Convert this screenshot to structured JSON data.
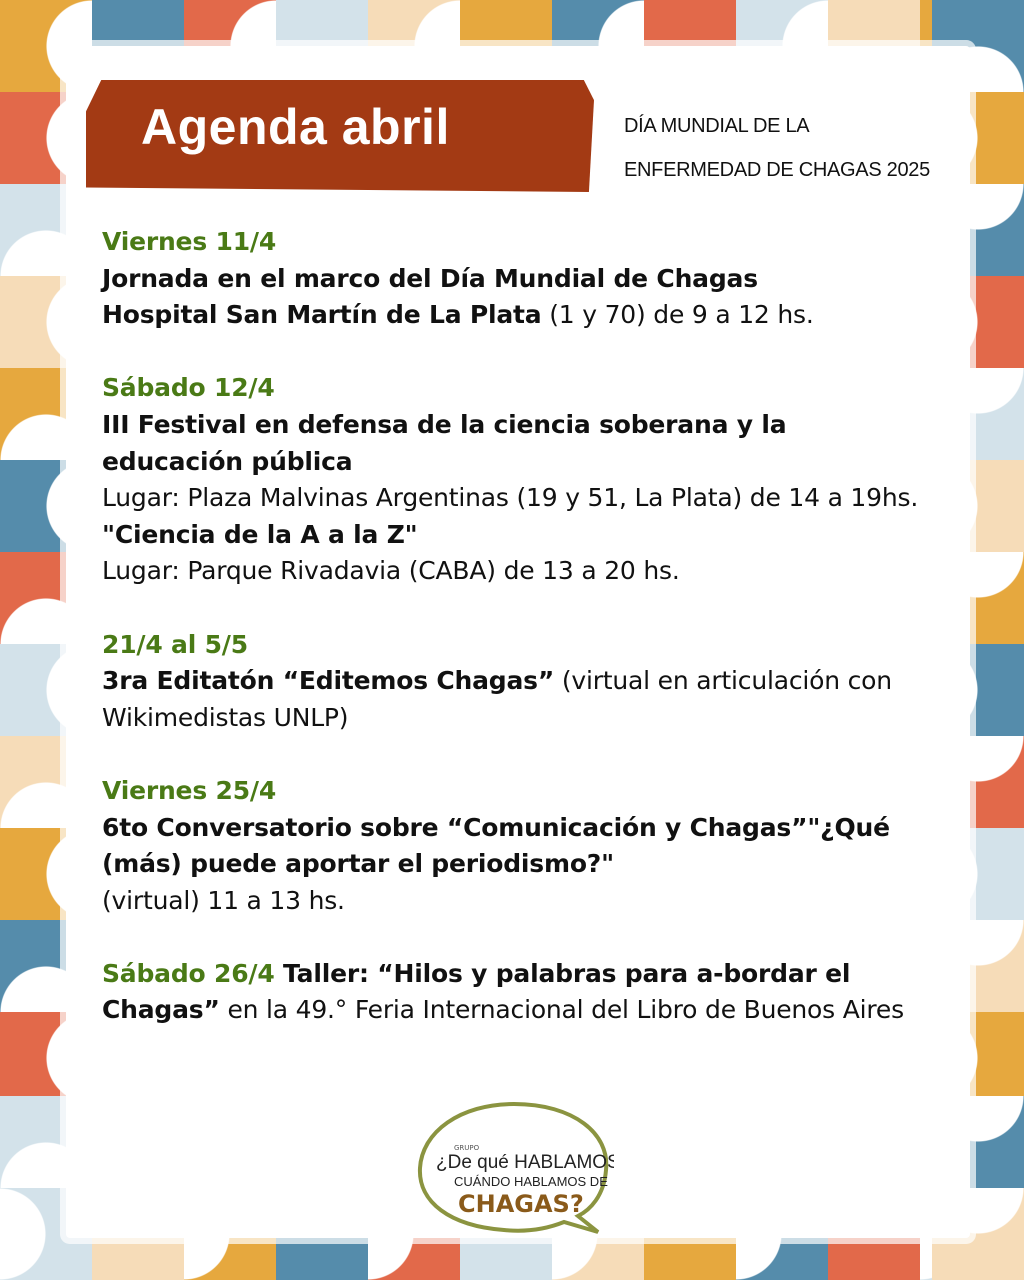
{
  "header": {
    "title": "Agenda abril",
    "subtitle_line1": "DÍA MUNDIAL DE LA",
    "subtitle_line2": "ENFERMEDAD DE CHAGAS 2025"
  },
  "colors": {
    "header_bg": "#a33a14",
    "date_green": "#4a7a16",
    "pattern": [
      "#e6a83e",
      "#558cab",
      "#e2694a",
      "#d3e2ea",
      "#f6dcb8"
    ]
  },
  "events": [
    {
      "date": "Viernes 11/4",
      "lines": [
        [
          {
            "t": "Jornada en el marco del Día Mundial de Chagas",
            "b": true
          }
        ],
        [
          {
            "t": "Hospital San Martín de La Plata",
            "b": true
          },
          {
            "t": " (1 y 70) de 9 a 12 hs.",
            "b": false
          }
        ]
      ]
    },
    {
      "date": "Sábado 12/4",
      "lines": [
        [
          {
            "t": "III Festival en defensa de la ciencia soberana y la educación pública",
            "b": true
          }
        ],
        [
          {
            "t": "Lugar: Plaza Malvinas Argentinas (19 y 51, La Plata) de 14 a 19hs.",
            "b": false
          }
        ],
        [
          {
            "t": "\"Ciencia de la A a la Z\"",
            "b": true
          }
        ],
        [
          {
            "t": "Lugar: Parque Rivadavia (CABA) de 13 a 20 hs.",
            "b": false
          }
        ]
      ]
    },
    {
      "date": "21/4 al 5/5",
      "lines": [
        [
          {
            "t": "3ra Editatón “Editemos Chagas”",
            "b": true
          },
          {
            "t": " (virtual en articulación con Wikimedistas UNLP)",
            "b": false
          }
        ]
      ]
    },
    {
      "date": "Viernes 25/4",
      "lines": [
        [
          {
            "t": "6to Conversatorio sobre “Comunicación y Chagas”\"¿Qué (más) puede aportar el periodismo?\"",
            "b": true
          }
        ],
        [
          {
            "t": "(virtual) 11 a 13 hs.",
            "b": false
          }
        ]
      ]
    },
    {
      "date": "Sábado 26/4",
      "inline": true,
      "lines": [
        [
          {
            "t": " Taller: “Hilos y palabras para a-bordar el Chagas”",
            "b": true
          },
          {
            "t": " en la 49.° Feria Internacional del Libro de Buenos Aires",
            "b": false
          }
        ]
      ]
    }
  ],
  "logo": {
    "small": "GRUPO",
    "line1": "¿De qué HABLAMOS",
    "line2": "CUÁNDO HABLAMOS DE",
    "line3": "CHAGAS?"
  }
}
